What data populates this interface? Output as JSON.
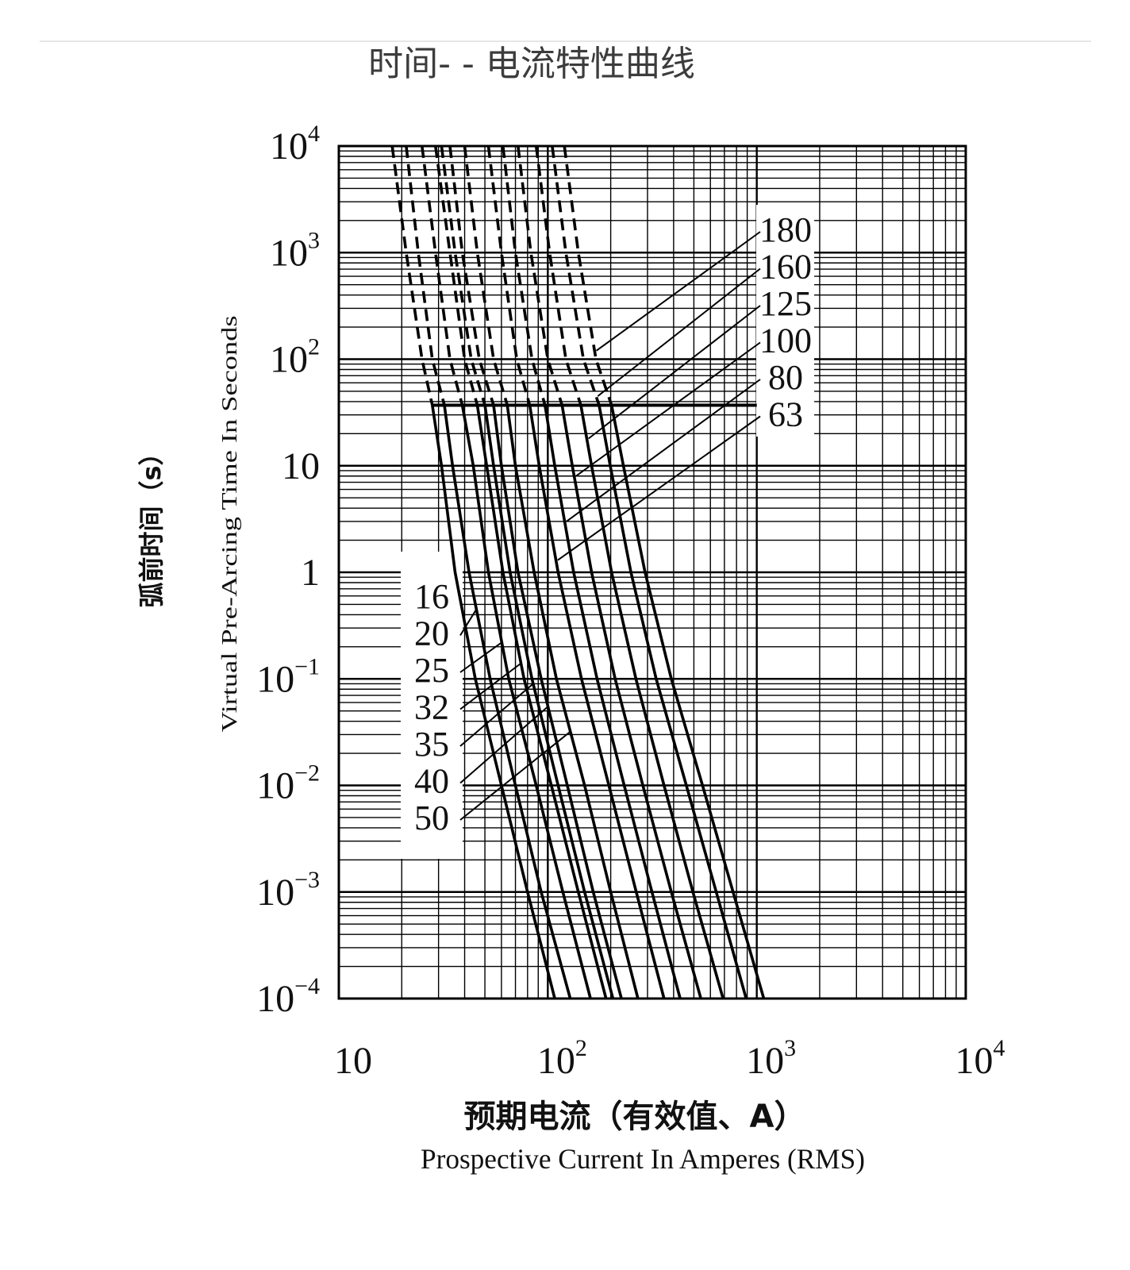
{
  "page": {
    "title_zh": "时间- - 电流特性曲线"
  },
  "chart_data": {
    "type": "line",
    "title": "时间- - 电流特性曲线",
    "xlabel_zh": "预期电流（有效值、A）",
    "xlabel": "Prospective Current In Amperes (RMS)",
    "ylabel_zh": "弧前时间（s）",
    "ylabel": "Virtual Pre-Arcing Time In Seconds",
    "x_scale": "log",
    "y_scale": "log",
    "xlim": [
      10,
      10000
    ],
    "ylim": [
      0.0001,
      10000
    ],
    "x_ticks": [
      {
        "value": 10,
        "base": "10",
        "exp": ""
      },
      {
        "value": 100,
        "base": "10",
        "exp": "2"
      },
      {
        "value": 1000,
        "base": "10",
        "exp": "3"
      },
      {
        "value": 10000,
        "base": "10",
        "exp": "4"
      }
    ],
    "y_ticks": [
      {
        "value": 10000,
        "base": "10",
        "exp": "4"
      },
      {
        "value": 1000,
        "base": "10",
        "exp": "3"
      },
      {
        "value": 100,
        "base": "10",
        "exp": "2"
      },
      {
        "value": 10,
        "base": "10",
        "exp": ""
      },
      {
        "value": 1,
        "base": "1",
        "exp": ""
      },
      {
        "value": 0.1,
        "base": "10",
        "exp": "−1"
      },
      {
        "value": 0.01,
        "base": "10",
        "exp": "−2"
      },
      {
        "value": 0.001,
        "base": "10",
        "exp": "−3"
      },
      {
        "value": 0.0001,
        "base": "10",
        "exp": "−4"
      }
    ],
    "grid": true,
    "dashed_above_seconds": 37,
    "cutoff_line": {
      "y": 37,
      "x_from": 28,
      "x_to": 1000
    },
    "series": [
      {
        "name": "16",
        "group": "low",
        "points": [
          [
            18,
            10000
          ],
          [
            21,
            1000
          ],
          [
            25,
            100
          ],
          [
            28,
            37
          ],
          [
            31,
            10
          ],
          [
            36,
            1
          ],
          [
            45,
            0.1
          ],
          [
            60,
            0.01
          ],
          [
            80,
            0.001
          ],
          [
            108,
            0.0001
          ]
        ]
      },
      {
        "name": "20",
        "group": "low",
        "points": [
          [
            21,
            10000
          ],
          [
            24,
            1000
          ],
          [
            28,
            100
          ],
          [
            32,
            37
          ],
          [
            35,
            10
          ],
          [
            42,
            1
          ],
          [
            53,
            0.1
          ],
          [
            70,
            0.01
          ],
          [
            93,
            0.001
          ],
          [
            128,
            0.0001
          ]
        ]
      },
      {
        "name": "25",
        "group": "low",
        "points": [
          [
            25,
            10000
          ],
          [
            29,
            1000
          ],
          [
            34,
            100
          ],
          [
            39,
            37
          ],
          [
            44,
            10
          ],
          [
            52,
            1
          ],
          [
            65,
            0.1
          ],
          [
            88,
            0.01
          ],
          [
            118,
            0.001
          ],
          [
            160,
            0.0001
          ]
        ]
      },
      {
        "name": "32",
        "group": "low",
        "points": [
          [
            29,
            10000
          ],
          [
            34,
            1000
          ],
          [
            40,
            100
          ],
          [
            46,
            37
          ],
          [
            51,
            10
          ],
          [
            61,
            1
          ],
          [
            77,
            0.1
          ],
          [
            104,
            0.01
          ],
          [
            140,
            0.001
          ],
          [
            190,
            0.0001
          ]
        ]
      },
      {
        "name": "35",
        "group": "low",
        "points": [
          [
            31,
            10000
          ],
          [
            36,
            1000
          ],
          [
            43,
            100
          ],
          [
            50,
            37
          ],
          [
            55,
            10
          ],
          [
            66,
            1
          ],
          [
            84,
            0.1
          ],
          [
            112,
            0.01
          ],
          [
            150,
            0.001
          ],
          [
            205,
            0.0001
          ]
        ]
      },
      {
        "name": "40",
        "group": "low",
        "points": [
          [
            34,
            10000
          ],
          [
            39,
            1000
          ],
          [
            47,
            100
          ],
          [
            55,
            37
          ],
          [
            60,
            10
          ],
          [
            72,
            1
          ],
          [
            93,
            0.1
          ],
          [
            124,
            0.01
          ],
          [
            165,
            0.001
          ],
          [
            225,
            0.0001
          ]
        ]
      },
      {
        "name": "50",
        "group": "low",
        "points": [
          [
            40,
            10000
          ],
          [
            46,
            1000
          ],
          [
            55,
            100
          ],
          [
            64,
            37
          ],
          [
            70,
            10
          ],
          [
            86,
            1
          ],
          [
            110,
            0.1
          ],
          [
            150,
            0.01
          ],
          [
            200,
            0.001
          ],
          [
            270,
            0.0001
          ]
        ]
      },
      {
        "name": "63",
        "group": "high",
        "points": [
          [
            52,
            10000
          ],
          [
            60,
            1000
          ],
          [
            71,
            100
          ],
          [
            82,
            37
          ],
          [
            91,
            10
          ],
          [
            112,
            1
          ],
          [
            145,
            0.1
          ],
          [
            196,
            0.01
          ],
          [
            265,
            0.001
          ],
          [
            360,
            0.0001
          ]
        ]
      },
      {
        "name": "80",
        "group": "high",
        "points": [
          [
            61,
            10000
          ],
          [
            70,
            1000
          ],
          [
            84,
            100
          ],
          [
            97,
            37
          ],
          [
            108,
            10
          ],
          [
            133,
            1
          ],
          [
            172,
            0.1
          ],
          [
            232,
            0.01
          ],
          [
            315,
            0.001
          ],
          [
            430,
            0.0001
          ]
        ]
      },
      {
        "name": "100",
        "group": "high",
        "points": [
          [
            72,
            10000
          ],
          [
            83,
            1000
          ],
          [
            100,
            100
          ],
          [
            117,
            37
          ],
          [
            131,
            10
          ],
          [
            162,
            1
          ],
          [
            210,
            0.1
          ],
          [
            285,
            0.01
          ],
          [
            390,
            0.001
          ],
          [
            540,
            0.0001
          ]
        ]
      },
      {
        "name": "125",
        "group": "high",
        "points": [
          [
            88,
            10000
          ],
          [
            102,
            1000
          ],
          [
            122,
            100
          ],
          [
            144,
            37
          ],
          [
            162,
            10
          ],
          [
            202,
            1
          ],
          [
            264,
            0.1
          ],
          [
            360,
            0.01
          ],
          [
            495,
            0.001
          ],
          [
            690,
            0.0001
          ]
        ]
      },
      {
        "name": "160",
        "group": "high",
        "points": [
          [
            105,
            10000
          ],
          [
            122,
            1000
          ],
          [
            148,
            100
          ],
          [
            176,
            37
          ],
          [
            199,
            10
          ],
          [
            250,
            1
          ],
          [
            330,
            0.1
          ],
          [
            460,
            0.01
          ],
          [
            640,
            0.001
          ],
          [
            890,
            0.0001
          ]
        ]
      },
      {
        "name": "180",
        "group": "high",
        "points": [
          [
            120,
            10000
          ],
          [
            140,
            1000
          ],
          [
            170,
            100
          ],
          [
            202,
            37
          ],
          [
            230,
            10
          ],
          [
            292,
            1
          ],
          [
            390,
            0.1
          ],
          [
            550,
            0.01
          ],
          [
            770,
            0.001
          ],
          [
            1080,
            0.0001
          ]
        ]
      }
    ]
  }
}
